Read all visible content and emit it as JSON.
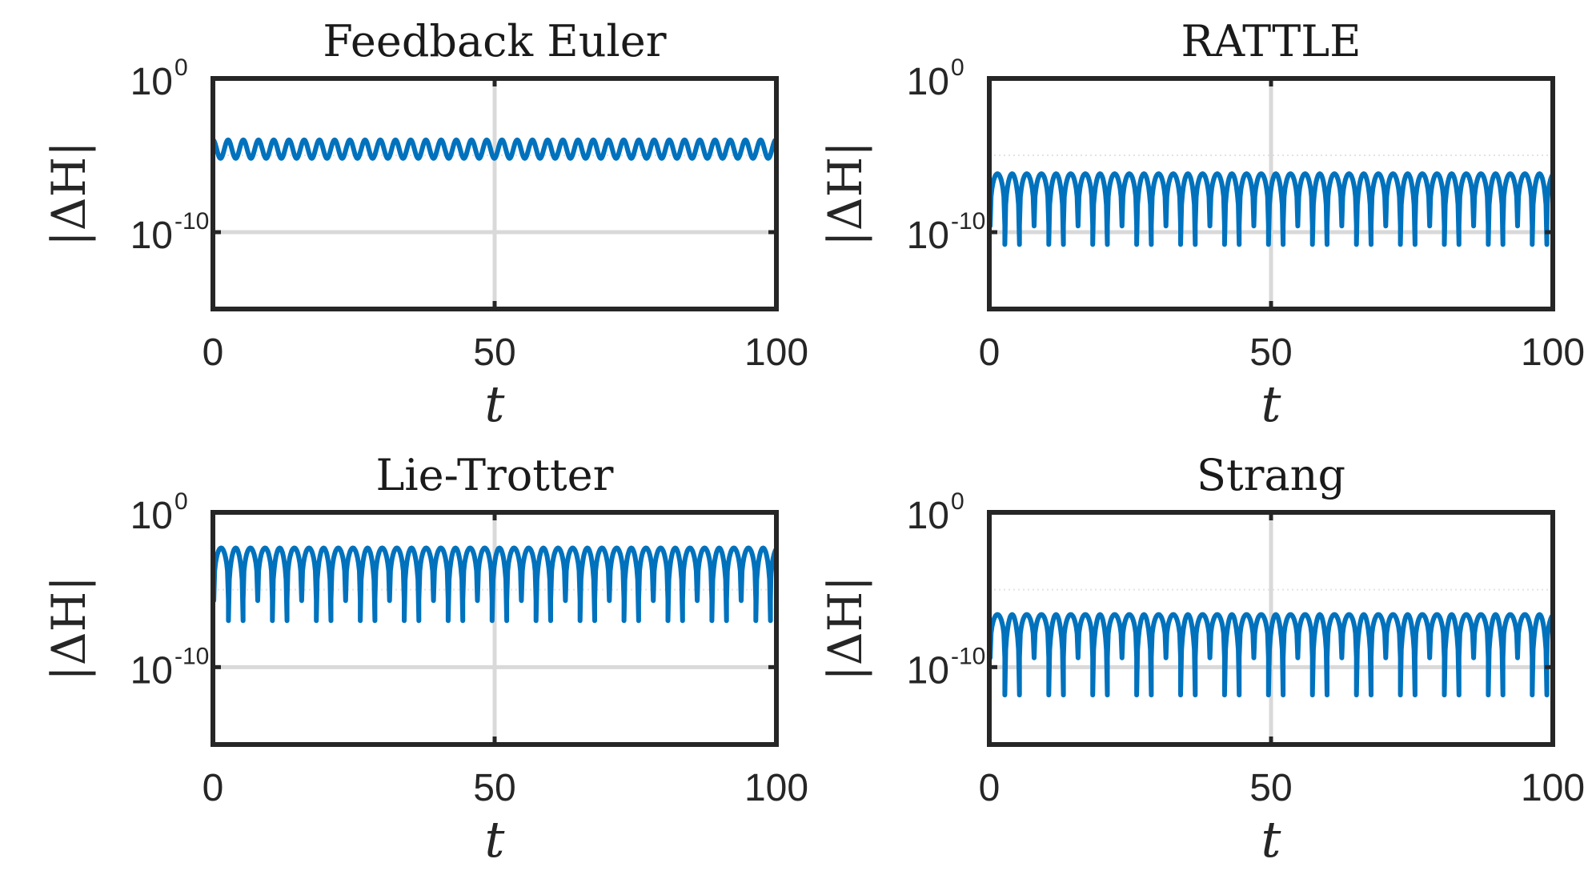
{
  "figure": {
    "background": "#ffffff",
    "line_color": "#0072BD"
  },
  "chart_data": [
    {
      "type": "line",
      "title": "Feedback Euler",
      "xlabel": "t",
      "ylabel": "|ΔH|",
      "xlim": [
        0,
        100
      ],
      "ylim_log10": [
        -15,
        0
      ],
      "yscale": "log",
      "xticks": [
        "0",
        "50",
        "100"
      ],
      "yticks": [
        {
          "base": "10",
          "exp": "0"
        },
        {
          "base": "10",
          "exp": "-10"
        }
      ],
      "grid": true,
      "series": [
        {
          "color": "#0072BD",
          "initial_log10": -15,
          "pattern": "sinusoidal",
          "period": 2.7,
          "log10_max": -4.0,
          "log10_min": -5.2
        }
      ]
    },
    {
      "type": "line",
      "title": "RATTLE",
      "xlabel": "t",
      "ylabel": "|ΔH|",
      "xlim": [
        0,
        100
      ],
      "ylim_log10": [
        -15,
        0
      ],
      "yscale": "log",
      "xticks": [
        "0",
        "50",
        "100"
      ],
      "yticks": [
        {
          "base": "10",
          "exp": "0"
        },
        {
          "base": "10",
          "exp": "-10"
        }
      ],
      "grid": true,
      "series": [
        {
          "color": "#0072BD",
          "initial_log10": -15,
          "pattern": "cusps",
          "period": 2.6,
          "log10_max": -6.2,
          "log10_dip": -9.6,
          "deep_dip_every": 3,
          "deep_dip_log10": -10.8
        }
      ]
    },
    {
      "type": "line",
      "title": "Lie-Trotter",
      "xlabel": "t",
      "ylabel": "|ΔH|",
      "xlim": [
        0,
        100
      ],
      "ylim_log10": [
        -15,
        0
      ],
      "yscale": "log",
      "xticks": [
        "0",
        "50",
        "100"
      ],
      "yticks": [
        {
          "base": "10",
          "exp": "0"
        },
        {
          "base": "10",
          "exp": "-10"
        }
      ],
      "grid": true,
      "series": [
        {
          "color": "#0072BD",
          "initial_log10": -15,
          "pattern": "cusps",
          "period": 2.6,
          "log10_max": -2.3,
          "log10_dip": -5.7,
          "deep_dip_every": 3,
          "deep_dip_log10": -7.0
        }
      ]
    },
    {
      "type": "line",
      "title": "Strang",
      "xlabel": "t",
      "ylabel": "|ΔH|",
      "xlim": [
        0,
        100
      ],
      "ylim_log10": [
        -15,
        0
      ],
      "yscale": "log",
      "xticks": [
        "0",
        "50",
        "100"
      ],
      "yticks": [
        {
          "base": "10",
          "exp": "0"
        },
        {
          "base": "10",
          "exp": "-10"
        }
      ],
      "grid": true,
      "series": [
        {
          "color": "#0072BD",
          "initial_log10": -15,
          "pattern": "cusps",
          "period": 2.6,
          "log10_max": -6.6,
          "log10_dip": -9.4,
          "deep_dip_every": 3,
          "deep_dip_log10": -11.8
        }
      ]
    }
  ]
}
